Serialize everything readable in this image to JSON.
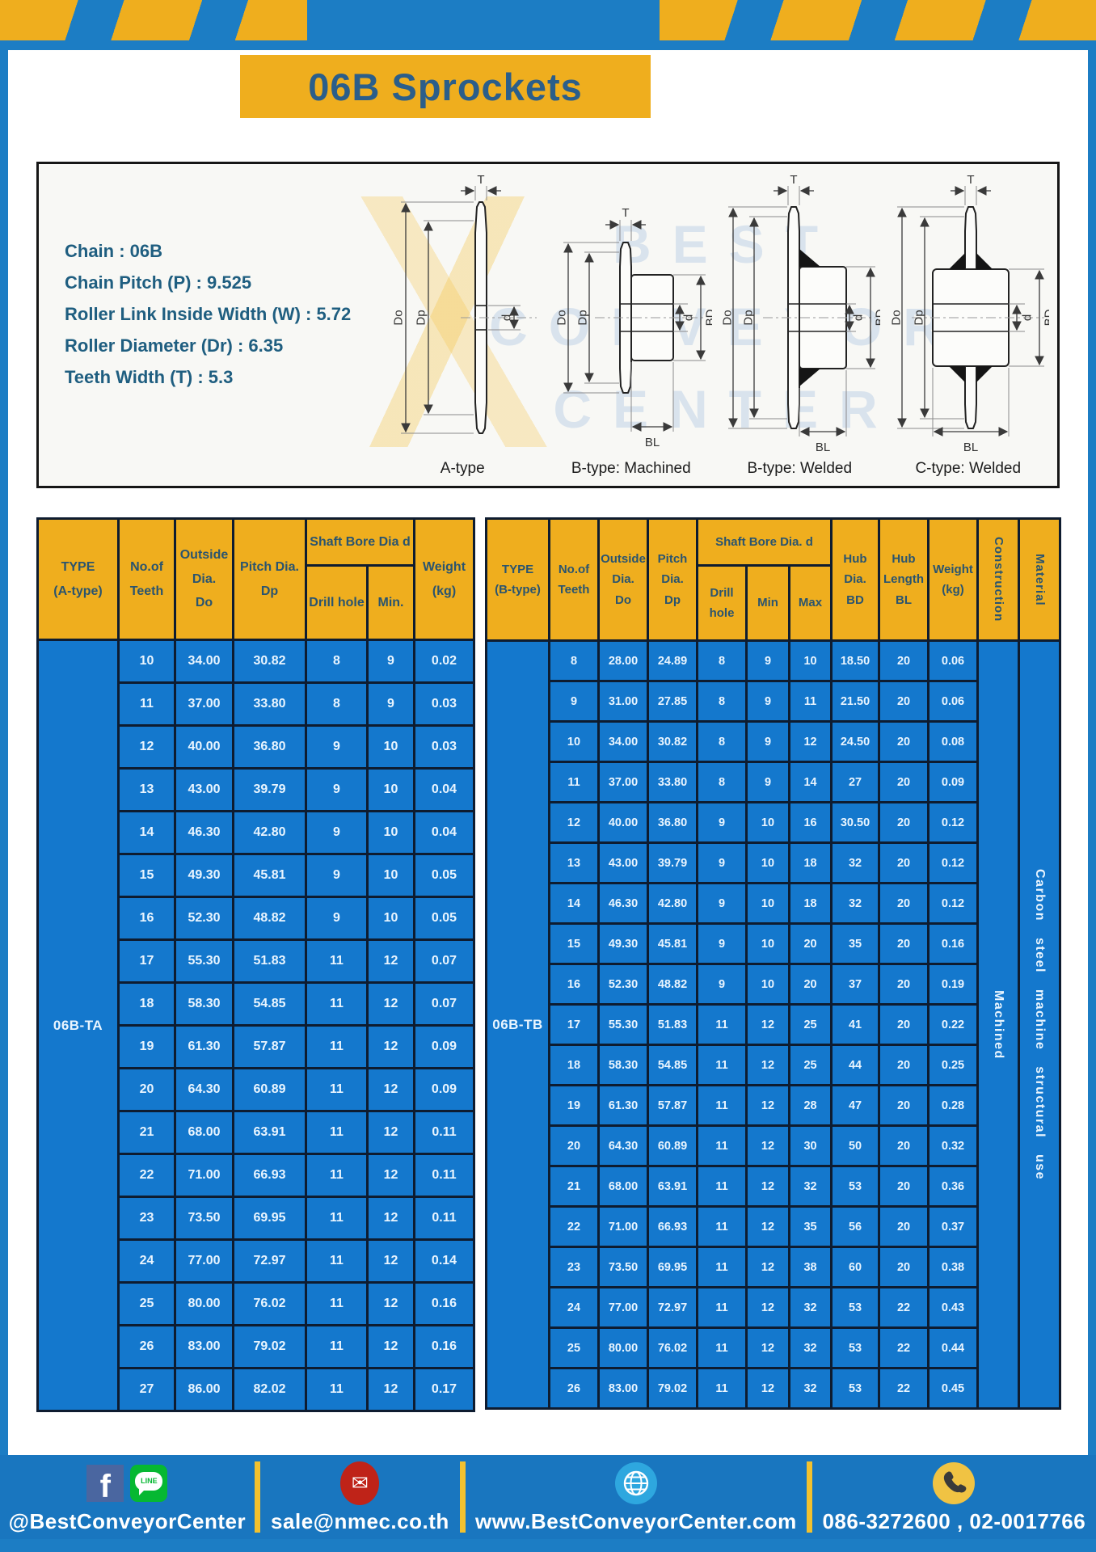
{
  "page": {
    "title": "06B Sprockets"
  },
  "colors": {
    "outer_blue": "#1c7dc4",
    "cell_blue": "#1478cd",
    "accent_yellow": "#efae1e",
    "footer_blue": "#1976bf",
    "title_text": "#2b5e8a",
    "header_text": "#2a546f"
  },
  "specs": {
    "lines": [
      "Chain  : 06B",
      "Chain Pitch (P)  :  9.525",
      "Roller Link Inside Width (W)  :  5.72",
      "Roller Diameter (Dr)  : 6.35",
      "Teeth Width (T)  :  5.3"
    ]
  },
  "watermark": {
    "lines": [
      "BEST",
      "CONVEYOR",
      "CENTER"
    ]
  },
  "diagrams": {
    "captions": [
      "A-type",
      "B-type: Machined",
      "B-type: Welded",
      "C-type: Welded"
    ],
    "dims": {
      "T": "T",
      "Do": "Do",
      "Dp": "Dp",
      "d": "d",
      "BD": "BD",
      "BL": "BL"
    }
  },
  "table_a": {
    "header": {
      "type": "TYPE\n(A-type)",
      "teeth": "No.of\nTeeth",
      "outside": "Outside\nDia.\nDo",
      "pitch": "Pitch Dia.\nDp",
      "bore_group": "Shaft Bore Dia d",
      "drill": "Drill hole",
      "min": "Min.",
      "weight": "Weight\n(kg)"
    },
    "type_label": "06B-TA",
    "rows": [
      [
        "10",
        "34.00",
        "30.82",
        "8",
        "9",
        "0.02"
      ],
      [
        "11",
        "37.00",
        "33.80",
        "8",
        "9",
        "0.03"
      ],
      [
        "12",
        "40.00",
        "36.80",
        "9",
        "10",
        "0.03"
      ],
      [
        "13",
        "43.00",
        "39.79",
        "9",
        "10",
        "0.04"
      ],
      [
        "14",
        "46.30",
        "42.80",
        "9",
        "10",
        "0.04"
      ],
      [
        "15",
        "49.30",
        "45.81",
        "9",
        "10",
        "0.05"
      ],
      [
        "16",
        "52.30",
        "48.82",
        "9",
        "10",
        "0.05"
      ],
      [
        "17",
        "55.30",
        "51.83",
        "11",
        "12",
        "0.07"
      ],
      [
        "18",
        "58.30",
        "54.85",
        "11",
        "12",
        "0.07"
      ],
      [
        "19",
        "61.30",
        "57.87",
        "11",
        "12",
        "0.09"
      ],
      [
        "20",
        "64.30",
        "60.89",
        "11",
        "12",
        "0.09"
      ],
      [
        "21",
        "68.00",
        "63.91",
        "11",
        "12",
        "0.11"
      ],
      [
        "22",
        "71.00",
        "66.93",
        "11",
        "12",
        "0.11"
      ],
      [
        "23",
        "73.50",
        "69.95",
        "11",
        "12",
        "0.11"
      ],
      [
        "24",
        "77.00",
        "72.97",
        "11",
        "12",
        "0.14"
      ],
      [
        "25",
        "80.00",
        "76.02",
        "11",
        "12",
        "0.16"
      ],
      [
        "26",
        "83.00",
        "79.02",
        "11",
        "12",
        "0.16"
      ],
      [
        "27",
        "86.00",
        "82.02",
        "11",
        "12",
        "0.17"
      ]
    ]
  },
  "table_b": {
    "header": {
      "type": "TYPE\n(B-type)",
      "teeth": "No.of\nTeeth",
      "outside": "Outside\nDia.\nDo",
      "pitch": "Pitch\nDia.\nDp",
      "bore_group": "Shaft Bore Dia. d",
      "drill": "Drill hole",
      "min": "Min",
      "max": "Max",
      "hub_dia": "Hub\nDia.\nBD",
      "hub_len": "Hub\nLength\nBL",
      "weight": "Weight\n(kg)",
      "construction": "Construction",
      "material": "Material"
    },
    "type_label": "06B-TB",
    "construction": "Machined",
    "material": "Carbon steel machine structural use",
    "rows": [
      [
        "8",
        "28.00",
        "24.89",
        "8",
        "9",
        "10",
        "18.50",
        "20",
        "0.06"
      ],
      [
        "9",
        "31.00",
        "27.85",
        "8",
        "9",
        "11",
        "21.50",
        "20",
        "0.06"
      ],
      [
        "10",
        "34.00",
        "30.82",
        "8",
        "9",
        "12",
        "24.50",
        "20",
        "0.08"
      ],
      [
        "11",
        "37.00",
        "33.80",
        "8",
        "9",
        "14",
        "27",
        "20",
        "0.09"
      ],
      [
        "12",
        "40.00",
        "36.80",
        "9",
        "10",
        "16",
        "30.50",
        "20",
        "0.12"
      ],
      [
        "13",
        "43.00",
        "39.79",
        "9",
        "10",
        "18",
        "32",
        "20",
        "0.12"
      ],
      [
        "14",
        "46.30",
        "42.80",
        "9",
        "10",
        "18",
        "32",
        "20",
        "0.12"
      ],
      [
        "15",
        "49.30",
        "45.81",
        "9",
        "10",
        "20",
        "35",
        "20",
        "0.16"
      ],
      [
        "16",
        "52.30",
        "48.82",
        "9",
        "10",
        "20",
        "37",
        "20",
        "0.19"
      ],
      [
        "17",
        "55.30",
        "51.83",
        "11",
        "12",
        "25",
        "41",
        "20",
        "0.22"
      ],
      [
        "18",
        "58.30",
        "54.85",
        "11",
        "12",
        "25",
        "44",
        "20",
        "0.25"
      ],
      [
        "19",
        "61.30",
        "57.87",
        "11",
        "12",
        "28",
        "47",
        "20",
        "0.28"
      ],
      [
        "20",
        "64.30",
        "60.89",
        "11",
        "12",
        "30",
        "50",
        "20",
        "0.32"
      ],
      [
        "21",
        "68.00",
        "63.91",
        "11",
        "12",
        "32",
        "53",
        "20",
        "0.36"
      ],
      [
        "22",
        "71.00",
        "66.93",
        "11",
        "12",
        "35",
        "56",
        "20",
        "0.37"
      ],
      [
        "23",
        "73.50",
        "69.95",
        "11",
        "12",
        "38",
        "60",
        "20",
        "0.38"
      ],
      [
        "24",
        "77.00",
        "72.97",
        "11",
        "12",
        "32",
        "53",
        "22",
        "0.43"
      ],
      [
        "25",
        "80.00",
        "76.02",
        "11",
        "12",
        "32",
        "53",
        "22",
        "0.44"
      ],
      [
        "26",
        "83.00",
        "79.02",
        "11",
        "12",
        "32",
        "53",
        "22",
        "0.45"
      ]
    ]
  },
  "footer": {
    "line_icon_text": "LINE",
    "sections": [
      {
        "label": "@BestConveyorCenter",
        "icons": [
          "facebook-icon",
          "line-icon"
        ]
      },
      {
        "label": "sale@nmec.co.th",
        "icons": [
          "mail-icon"
        ]
      },
      {
        "label": "www.BestConveyorCenter.com",
        "icons": [
          "globe-icon"
        ]
      },
      {
        "label": "086-3272600 , 02-0017766",
        "icons": [
          "phone-icon"
        ]
      }
    ]
  }
}
